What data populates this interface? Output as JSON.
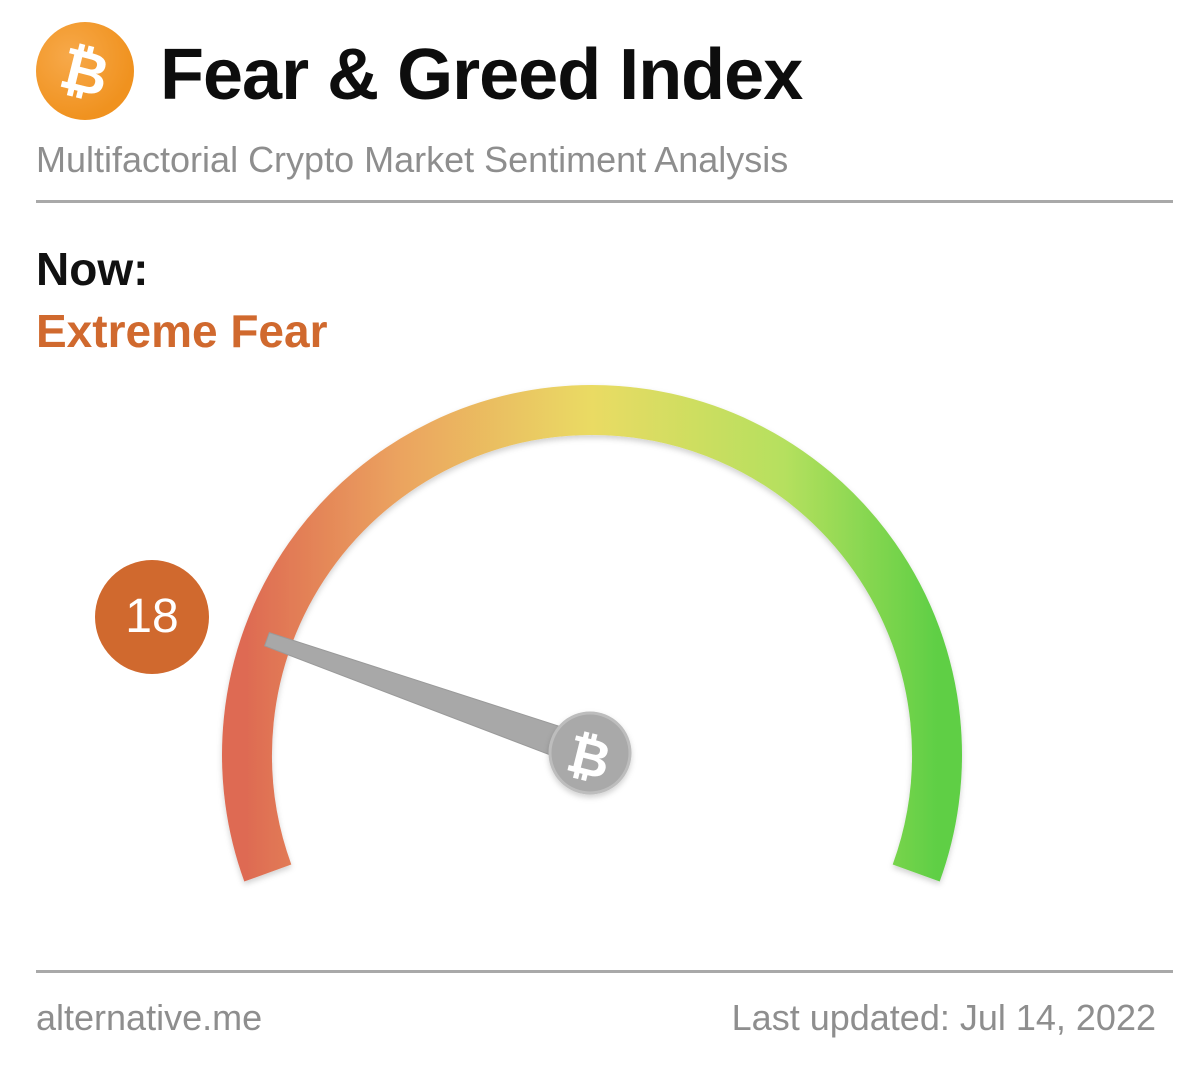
{
  "header": {
    "icon": "bitcoin-icon",
    "title": "Fear & Greed Index",
    "subtitle": "Multifactorial Crypto Market Sentiment Analysis"
  },
  "current": {
    "label": "Now:",
    "classification": "Extreme Fear",
    "value": "18",
    "color": "#d0692e"
  },
  "gauge": {
    "min": 0,
    "max": 100,
    "value": 18,
    "colors": {
      "start": "#de6b52",
      "quarter": "#eba35f",
      "middle": "#eadb64",
      "three_quarter": "#b5e05e",
      "end": "#5fcf45"
    },
    "needle_icon": "bitcoin-icon"
  },
  "footer": {
    "source": "alternative.me",
    "last_updated": "Last updated: Jul 14, 2022"
  }
}
